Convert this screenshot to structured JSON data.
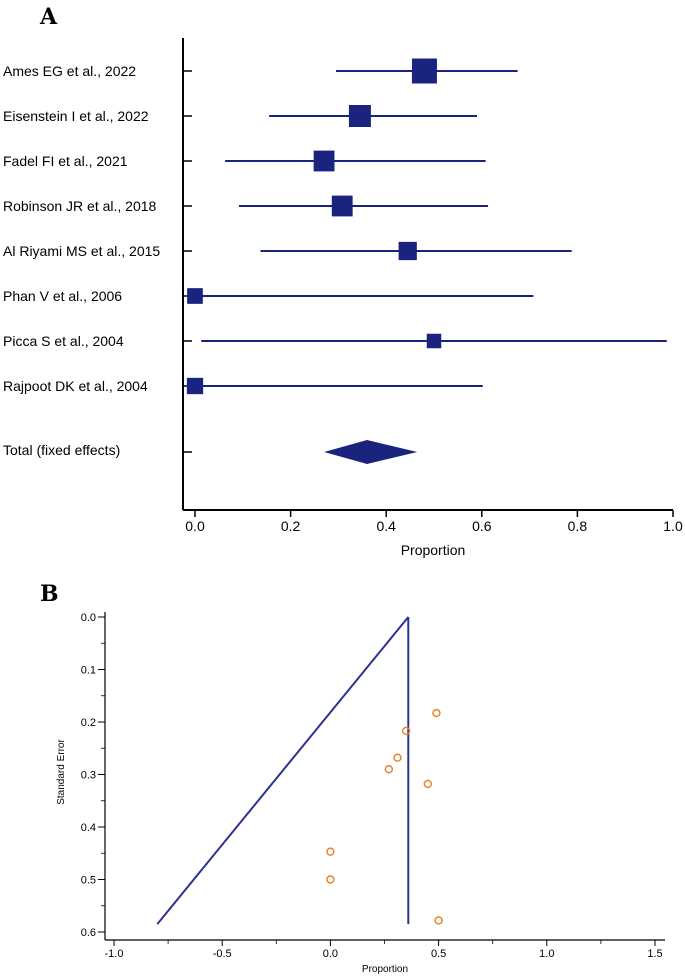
{
  "colors": {
    "navy": "#1a237e",
    "orange": "#e67e22",
    "axis": "#000000",
    "funnel": "#2b3390"
  },
  "chart_data": [
    {
      "type": "forest",
      "panel_label": "A",
      "xlabel": "Proportion",
      "xlim": [
        0,
        1.0
      ],
      "xticks": [
        "0.0",
        "0.2",
        "0.4",
        "0.6",
        "0.8",
        "1.0"
      ],
      "studies": [
        {
          "label": "Ames EG et al., 2022",
          "estimate": 0.48,
          "lower": 0.295,
          "upper": 0.675,
          "weight": 1.0
        },
        {
          "label": "Eisenstein I et al., 2022",
          "estimate": 0.345,
          "lower": 0.155,
          "upper": 0.59,
          "weight": 0.8
        },
        {
          "label": "Fadel FI et al., 2021",
          "estimate": 0.27,
          "lower": 0.063,
          "upper": 0.608,
          "weight": 0.72
        },
        {
          "label": "Robinson JR et al., 2018",
          "estimate": 0.308,
          "lower": 0.092,
          "upper": 0.613,
          "weight": 0.72
        },
        {
          "label": "Al Riyami MS et al., 2015",
          "estimate": 0.445,
          "lower": 0.137,
          "upper": 0.788,
          "weight": 0.55
        },
        {
          "label": "Phan V et al., 2006",
          "estimate": 0.0,
          "lower": 0.0,
          "upper": 0.708,
          "weight": 0.38
        },
        {
          "label": "Picca S et al., 2004",
          "estimate": 0.5,
          "lower": 0.013,
          "upper": 0.987,
          "weight": 0.3
        },
        {
          "label": "Rajpoot DK et al., 2004",
          "estimate": 0.0,
          "lower": 0.0,
          "upper": 0.602,
          "weight": 0.42
        }
      ],
      "total": {
        "label": "Total (fixed effects)",
        "estimate": 0.36,
        "lower": 0.27,
        "upper": 0.465
      }
    },
    {
      "type": "scatter",
      "subtype": "funnel",
      "panel_label": "B",
      "xlabel": "Proportion",
      "ylabel": "Standard Error",
      "xlim": [
        -1.0,
        1.5
      ],
      "ylim": [
        0.0,
        0.6
      ],
      "y_inverted": true,
      "xticks": [
        "-1.0",
        "-0.5",
        "0.0",
        "0.5",
        "1.0",
        "1.5"
      ],
      "yticks": [
        "0.0",
        "0.1",
        "0.2",
        "0.3",
        "0.4",
        "0.5",
        "0.6"
      ],
      "pooled_estimate": 0.36,
      "funnel": {
        "apex": [
          0.36,
          0.0
        ],
        "left_base": [
          -0.8,
          0.585
        ],
        "right_base": [
          0.36,
          0.585
        ]
      },
      "points": [
        {
          "x": 0.49,
          "y": 0.183
        },
        {
          "x": 0.35,
          "y": 0.217
        },
        {
          "x": 0.31,
          "y": 0.268
        },
        {
          "x": 0.27,
          "y": 0.29
        },
        {
          "x": 0.45,
          "y": 0.318
        },
        {
          "x": 0.0,
          "y": 0.447
        },
        {
          "x": 0.0,
          "y": 0.5
        },
        {
          "x": 0.5,
          "y": 0.578
        }
      ]
    }
  ]
}
